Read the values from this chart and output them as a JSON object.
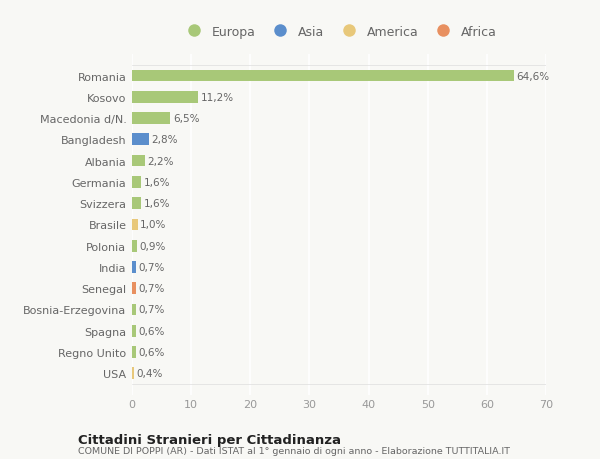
{
  "countries": [
    "USA",
    "Regno Unito",
    "Spagna",
    "Bosnia-Erzegovina",
    "Senegal",
    "India",
    "Polonia",
    "Brasile",
    "Svizzera",
    "Germania",
    "Albania",
    "Bangladesh",
    "Macedonia d/N.",
    "Kosovo",
    "Romania"
  ],
  "values": [
    0.4,
    0.6,
    0.6,
    0.7,
    0.7,
    0.7,
    0.9,
    1.0,
    1.6,
    1.6,
    2.2,
    2.8,
    6.5,
    11.2,
    64.6
  ],
  "labels": [
    "0,4%",
    "0,6%",
    "0,6%",
    "0,7%",
    "0,7%",
    "0,7%",
    "0,9%",
    "1,0%",
    "1,6%",
    "1,6%",
    "2,2%",
    "2,8%",
    "6,5%",
    "11,2%",
    "64,6%"
  ],
  "colors": [
    "#e8c87a",
    "#a8c878",
    "#a8c878",
    "#a8c878",
    "#e89060",
    "#5b8ecc",
    "#a8c878",
    "#e8c87a",
    "#a8c878",
    "#a8c878",
    "#a8c878",
    "#5b8ecc",
    "#a8c878",
    "#a8c878",
    "#a8c878"
  ],
  "legend_labels": [
    "Europa",
    "Asia",
    "America",
    "Africa"
  ],
  "legend_colors": [
    "#a8c878",
    "#5b8ecc",
    "#e8c87a",
    "#e89060"
  ],
  "xlim": [
    0,
    70
  ],
  "xticks": [
    0,
    10,
    20,
    30,
    40,
    50,
    60,
    70
  ],
  "title": "Cittadini Stranieri per Cittadinanza",
  "subtitle": "COMUNE DI POPPI (AR) - Dati ISTAT al 1° gennaio di ogni anno - Elaborazione TUTTITALIA.IT",
  "bg_color": "#f8f8f5",
  "grid_color": "#ffffff",
  "bar_height": 0.55,
  "label_color": "#666666",
  "tick_color": "#999999"
}
